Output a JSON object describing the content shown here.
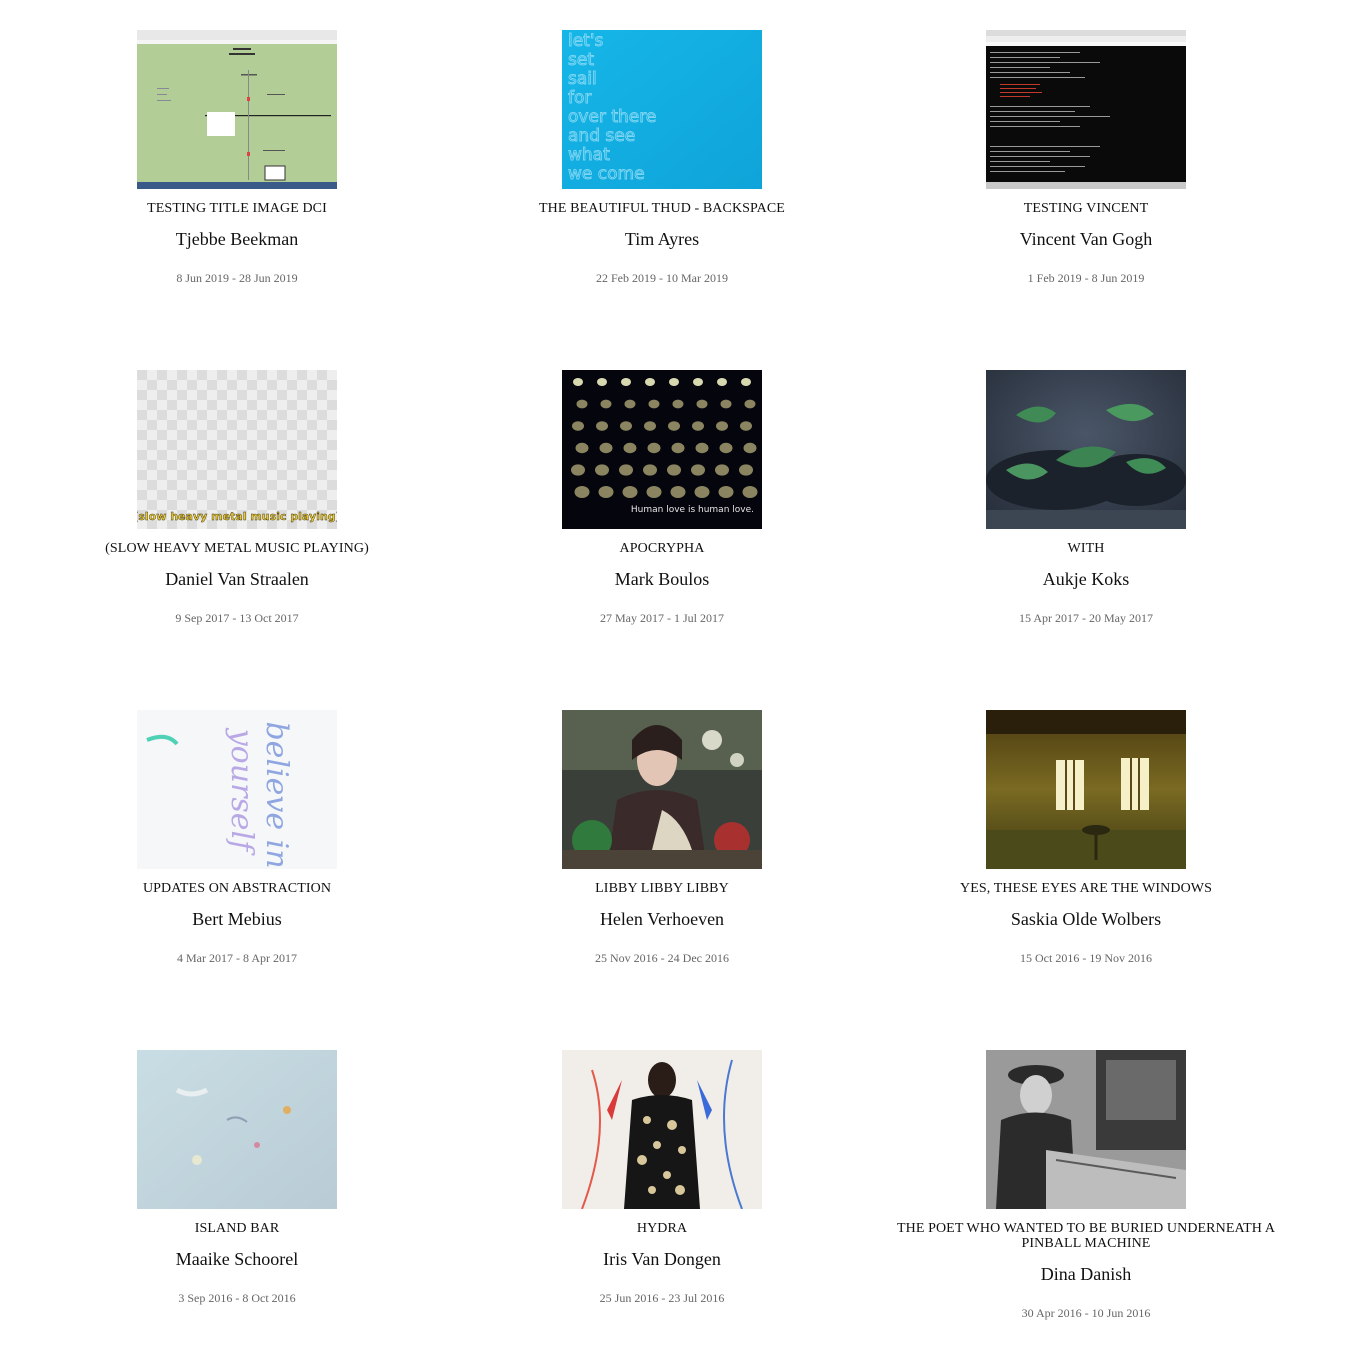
{
  "exhibitions": [
    {
      "title": "TESTING TITLE IMAGE DCI",
      "artist": "Tjebbe Beekman",
      "dates": "8 Jun 2019 - 28 Jun 2019",
      "thumb": "browser-screenshot"
    },
    {
      "title": "THE BEAUTIFUL THUD - BACKSPACE",
      "artist": "Tim Ayres",
      "dates": "22 Feb 2019 - 10 Mar 2019",
      "thumb": "blue-text-poster",
      "thumb_text": [
        "let's",
        "set",
        "sail",
        "for",
        "over there",
        "and see",
        "what",
        "we come"
      ]
    },
    {
      "title": "TESTING VINCENT",
      "artist": "Vincent Van Gogh",
      "dates": "1 Feb 2019 - 8 Jun 2019",
      "thumb": "terminal-screenshot"
    },
    {
      "title": "(SLOW HEAVY METAL MUSIC PLAYING)",
      "artist": "Daniel Van Straalen",
      "dates": "9 Sep 2017 - 13 Oct 2017",
      "thumb": "checker-caption",
      "thumb_text": [
        "(slow heavy metal music playing)"
      ]
    },
    {
      "title": "APOCRYPHA",
      "artist": "Mark Boulos",
      "dates": "27 May 2017 - 1 Jul 2017",
      "thumb": "dark-dots",
      "thumb_text": [
        "Human love is human love."
      ]
    },
    {
      "title": "WITH",
      "artist": "Aukje Koks",
      "dates": "15 Apr 2017 - 20 May 2017",
      "thumb": "green-leaves"
    },
    {
      "title": "UPDATES ON ABSTRACTION",
      "artist": "Bert Mebius",
      "dates": "4 Mar 2017 - 8 Apr 2017",
      "thumb": "script-text",
      "thumb_text": [
        "believe in",
        "yourself"
      ]
    },
    {
      "title": "LIBBY LIBBY LIBBY",
      "artist": "Helen Verhoeven",
      "dates": "25 Nov 2016 - 24 Dec 2016",
      "thumb": "painting-woman"
    },
    {
      "title": "YES, THESE EYES ARE THE WINDOWS",
      "artist": "Saskia Olde Wolbers",
      "dates": "15 Oct 2016 - 19 Nov 2016",
      "thumb": "golden-room"
    },
    {
      "title": "ISLAND BAR",
      "artist": "Maaike Schoorel",
      "dates": "3 Sep 2016 - 8 Oct 2016",
      "thumb": "pale-abstract"
    },
    {
      "title": "HYDRA",
      "artist": "Iris Van Dongen",
      "dates": "25 Jun 2016 - 23 Jul 2016",
      "thumb": "figure-drawing"
    },
    {
      "title": "THE POET WHO WANTED TO BE BURIED UNDERNEATH A PINBALL MACHINE",
      "artist": "Dina Danish",
      "dates": "30 Apr 2016 - 10 Jun 2016",
      "thumb": "bw-pinball"
    }
  ],
  "colors": {
    "title": "#111111",
    "dates": "#666666",
    "background": "#ffffff"
  }
}
